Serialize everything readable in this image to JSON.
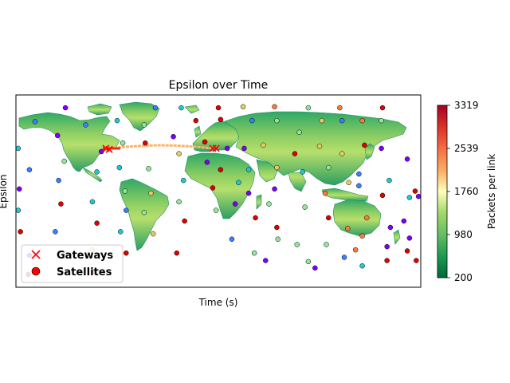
{
  "chart_data": {
    "type": "scatter",
    "title": "Epsilon over Time",
    "xlabel": "Time (s)",
    "ylabel": "Epsilon",
    "background": "world-map",
    "colorbar": {
      "label": "Packets per link",
      "colormap": "RdYlGn_r",
      "min": 200,
      "max": 3319,
      "ticks": [
        "200",
        "980",
        "1760",
        "2539",
        "3319"
      ]
    },
    "legend": {
      "location": "lower-left",
      "entries": [
        {
          "label": "Gateways",
          "marker": "x",
          "color": "#ff0000"
        },
        {
          "label": "Satellites",
          "marker": "o",
          "color": "#ff0000"
        }
      ]
    },
    "gateways": [
      {
        "lon": -100,
        "lat": 40
      },
      {
        "lon": -97,
        "lat": 39
      },
      {
        "lon": -5,
        "lat": 40
      },
      {
        "lon": -2,
        "lat": 40
      }
    ],
    "satellite_colors": [
      "#7b00ff",
      "#3a7fff",
      "#1ec8d6",
      "#8ee89a",
      "#e8cc62",
      "#ff7a36",
      "#e10000"
    ],
    "satellites": [
      {
        "lon": -163,
        "lat": 65,
        "c": 1
      },
      {
        "lon": -178,
        "lat": 40,
        "c": 2
      },
      {
        "lon": -168,
        "lat": 20,
        "c": 1
      },
      {
        "lon": -177,
        "lat": 2,
        "c": 0
      },
      {
        "lon": -178,
        "lat": -18,
        "c": 2
      },
      {
        "lon": -176,
        "lat": -38,
        "c": 6
      },
      {
        "lon": -168,
        "lat": -60,
        "c": 0
      },
      {
        "lon": -169,
        "lat": -78,
        "c": 6
      },
      {
        "lon": -136,
        "lat": 78,
        "c": 0
      },
      {
        "lon": -143,
        "lat": 52,
        "c": 0
      },
      {
        "lon": -137,
        "lat": 28,
        "c": 3
      },
      {
        "lon": -142,
        "lat": 10,
        "c": 1
      },
      {
        "lon": -140,
        "lat": -12,
        "c": 6
      },
      {
        "lon": -145,
        "lat": -38,
        "c": 1
      },
      {
        "lon": -138,
        "lat": -58,
        "c": 2
      },
      {
        "lon": -140,
        "lat": -76,
        "c": 6
      },
      {
        "lon": -118,
        "lat": 62,
        "c": 1
      },
      {
        "lon": -104,
        "lat": 37,
        "c": 0
      },
      {
        "lon": -108,
        "lat": 18,
        "c": 2
      },
      {
        "lon": -112,
        "lat": -10,
        "c": 2
      },
      {
        "lon": -108,
        "lat": -30,
        "c": 6
      },
      {
        "lon": -112,
        "lat": -55,
        "c": 4
      },
      {
        "lon": -110,
        "lat": -76,
        "c": 6
      },
      {
        "lon": -90,
        "lat": 66,
        "c": 2
      },
      {
        "lon": -85,
        "lat": 45,
        "c": 3
      },
      {
        "lon": -88,
        "lat": 22,
        "c": 2
      },
      {
        "lon": -83,
        "lat": 0,
        "c": 3
      },
      {
        "lon": -82,
        "lat": -18,
        "c": 1
      },
      {
        "lon": -87,
        "lat": -38,
        "c": 2
      },
      {
        "lon": -82,
        "lat": -58,
        "c": 6
      },
      {
        "lon": -56,
        "lat": 78,
        "c": 1
      },
      {
        "lon": -66,
        "lat": 62,
        "c": 3
      },
      {
        "lon": -65,
        "lat": 45,
        "c": 6
      },
      {
        "lon": -62,
        "lat": 21,
        "c": 3
      },
      {
        "lon": -60,
        "lat": -2,
        "c": 4
      },
      {
        "lon": -66,
        "lat": -20,
        "c": 3
      },
      {
        "lon": -58,
        "lat": -40,
        "c": 4
      },
      {
        "lon": -33,
        "lat": 78,
        "c": 2
      },
      {
        "lon": -40,
        "lat": 51,
        "c": 0
      },
      {
        "lon": -35,
        "lat": 35,
        "c": 4
      },
      {
        "lon": -31,
        "lat": 10,
        "c": 2
      },
      {
        "lon": -35,
        "lat": -10,
        "c": 3
      },
      {
        "lon": -30,
        "lat": -28,
        "c": 6
      },
      {
        "lon": -37,
        "lat": -58,
        "c": 6
      },
      {
        "lon": -20,
        "lat": 66,
        "c": 6
      },
      {
        "lon": -12,
        "lat": 46,
        "c": 6
      },
      {
        "lon": -10,
        "lat": 27,
        "c": 0
      },
      {
        "lon": -5,
        "lat": 3,
        "c": 6
      },
      {
        "lon": -2,
        "lat": -18,
        "c": 3
      },
      {
        "lon": 0,
        "lat": 78,
        "c": 6
      },
      {
        "lon": 2,
        "lat": 67,
        "c": 6
      },
      {
        "lon": 8,
        "lat": 40,
        "c": 0
      },
      {
        "lon": 2,
        "lat": 20,
        "c": 6
      },
      {
        "lon": 18,
        "lat": 8,
        "c": 2
      },
      {
        "lon": 15,
        "lat": -12,
        "c": 0
      },
      {
        "lon": 12,
        "lat": -45,
        "c": 1
      },
      {
        "lon": 22,
        "lat": 79,
        "c": 4
      },
      {
        "lon": 30,
        "lat": 66,
        "c": 1
      },
      {
        "lon": 23,
        "lat": 40,
        "c": 0
      },
      {
        "lon": 27,
        "lat": 20,
        "c": 2
      },
      {
        "lon": 27,
        "lat": -2,
        "c": 0
      },
      {
        "lon": 33,
        "lat": -25,
        "c": 6
      },
      {
        "lon": 32,
        "lat": -58,
        "c": 3
      },
      {
        "lon": 42,
        "lat": -65,
        "c": 0
      },
      {
        "lon": 50,
        "lat": 79,
        "c": 5
      },
      {
        "lon": 52,
        "lat": 66,
        "c": 3
      },
      {
        "lon": 40,
        "lat": 43,
        "c": 4
      },
      {
        "lon": 52,
        "lat": 22,
        "c": 4
      },
      {
        "lon": 50,
        "lat": 2,
        "c": 0
      },
      {
        "lon": 45,
        "lat": -12,
        "c": 3
      },
      {
        "lon": 52,
        "lat": -34,
        "c": 6
      },
      {
        "lon": 53,
        "lat": -45,
        "c": 3
      },
      {
        "lon": 72,
        "lat": 55,
        "c": 3
      },
      {
        "lon": 68,
        "lat": 35,
        "c": 6
      },
      {
        "lon": 75,
        "lat": 18,
        "c": 2
      },
      {
        "lon": 77,
        "lat": -15,
        "c": 3
      },
      {
        "lon": 70,
        "lat": -50,
        "c": 3
      },
      {
        "lon": 80,
        "lat": -66,
        "c": 3
      },
      {
        "lon": 80,
        "lat": 78,
        "c": 3
      },
      {
        "lon": 92,
        "lat": 66,
        "c": 4
      },
      {
        "lon": 90,
        "lat": 42,
        "c": 4
      },
      {
        "lon": 98,
        "lat": 22,
        "c": 3
      },
      {
        "lon": 95,
        "lat": -2,
        "c": 5
      },
      {
        "lon": 98,
        "lat": -25,
        "c": 6
      },
      {
        "lon": 96,
        "lat": -50,
        "c": 3
      },
      {
        "lon": 86,
        "lat": -72,
        "c": 0
      },
      {
        "lon": 108,
        "lat": 78,
        "c": 5
      },
      {
        "lon": 110,
        "lat": 66,
        "c": 1
      },
      {
        "lon": 110,
        "lat": 35,
        "c": 4
      },
      {
        "lon": 116,
        "lat": 8,
        "c": 4
      },
      {
        "lon": 115,
        "lat": -35,
        "c": 5
      },
      {
        "lon": 112,
        "lat": -62,
        "c": 1
      },
      {
        "lon": 128,
        "lat": 66,
        "c": 5
      },
      {
        "lon": 130,
        "lat": 43,
        "c": 6
      },
      {
        "lon": 125,
        "lat": 16,
        "c": 1
      },
      {
        "lon": 125,
        "lat": 5,
        "c": 1
      },
      {
        "lon": 132,
        "lat": -25,
        "c": 5
      },
      {
        "lon": 128,
        "lat": -42,
        "c": 5
      },
      {
        "lon": 122,
        "lat": -55,
        "c": 5
      },
      {
        "lon": 128,
        "lat": -70,
        "c": 2
      },
      {
        "lon": 146,
        "lat": 78,
        "c": 6
      },
      {
        "lon": 145,
        "lat": 66,
        "c": 3
      },
      {
        "lon": 145,
        "lat": 40,
        "c": 0
      },
      {
        "lon": 152,
        "lat": 10,
        "c": 2
      },
      {
        "lon": 146,
        "lat": -4,
        "c": 6
      },
      {
        "lon": 153,
        "lat": -34,
        "c": 0
      },
      {
        "lon": 150,
        "lat": -52,
        "c": 0
      },
      {
        "lon": 150,
        "lat": -65,
        "c": 6
      },
      {
        "lon": 168,
        "lat": 30,
        "c": 0
      },
      {
        "lon": 170,
        "lat": -6,
        "c": 2
      },
      {
        "lon": 165,
        "lat": -28,
        "c": 0
      },
      {
        "lon": 170,
        "lat": -44,
        "c": 0
      },
      {
        "lon": 168,
        "lat": -56,
        "c": 6
      },
      {
        "lon": 175,
        "lat": 0,
        "c": 6
      },
      {
        "lon": 178,
        "lat": -5,
        "c": 0
      },
      {
        "lon": 176,
        "lat": -65,
        "c": 6
      }
    ]
  }
}
